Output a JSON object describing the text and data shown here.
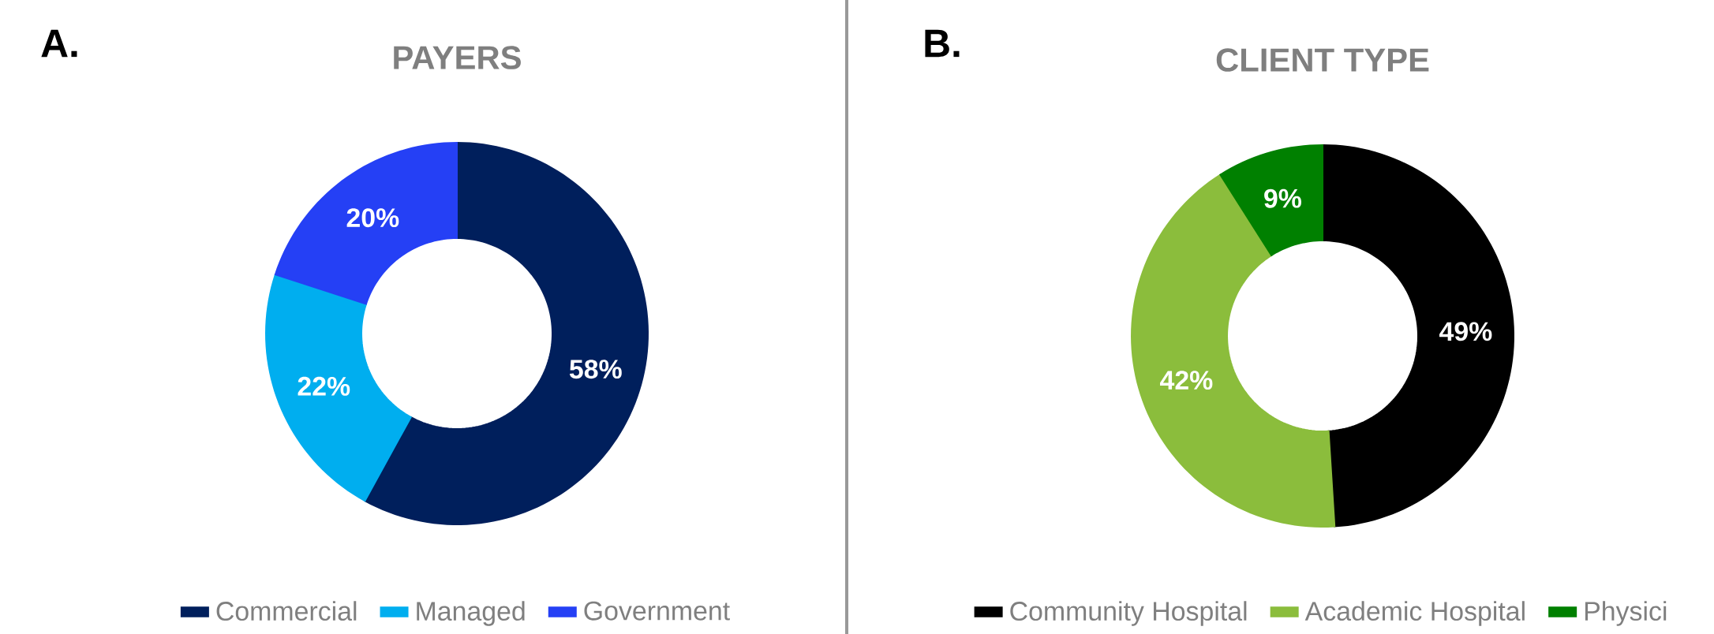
{
  "chart_data": [
    {
      "type": "donut",
      "title": "PAYERS",
      "categories": [
        "Commercial",
        "Managed",
        "Government"
      ],
      "values": [
        58,
        22,
        20
      ],
      "colors": [
        "#001f5c",
        "#00aeef",
        "#2540f5"
      ],
      "value_labels": [
        "58%",
        "22%",
        "20%"
      ],
      "legend": "bottom",
      "annotations": [
        "A."
      ]
    },
    {
      "type": "donut",
      "title": "CLIENT TYPE",
      "categories": [
        "Community Hospital",
        "Academic Hospital",
        "Physici"
      ],
      "values": [
        49,
        42,
        9
      ],
      "colors": [
        "#000000",
        "#8bbd3c",
        "#008000"
      ],
      "value_labels": [
        "49%",
        "42%",
        "9%"
      ],
      "legend": "bottom",
      "annotations": [
        "B."
      ]
    }
  ]
}
